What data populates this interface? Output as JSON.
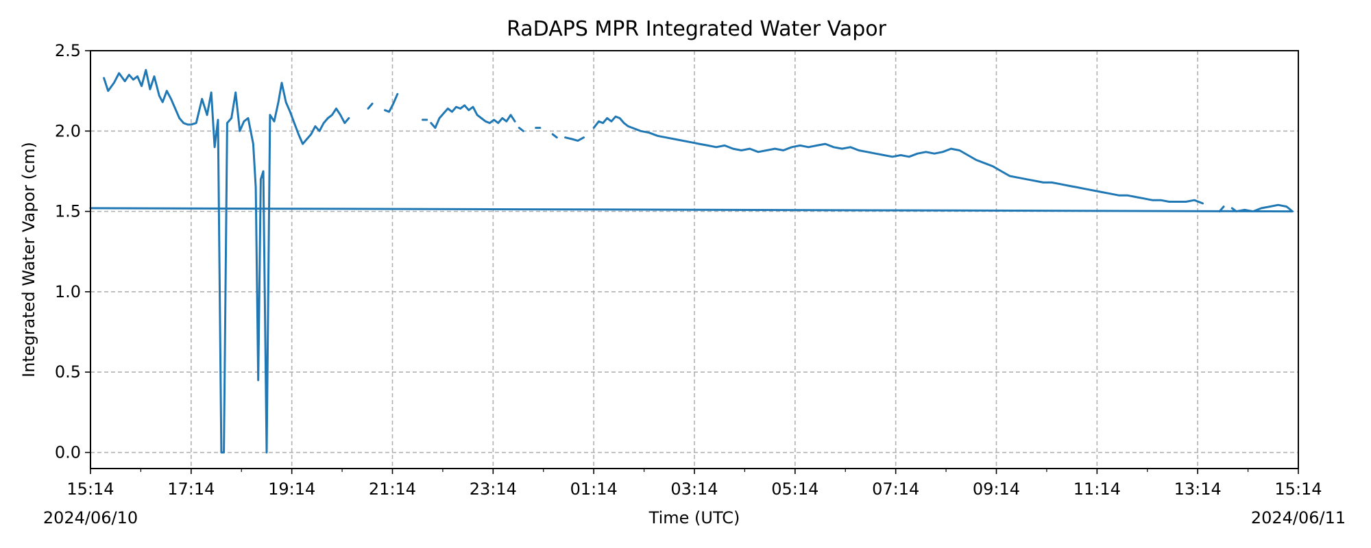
{
  "chart_data": {
    "type": "line",
    "title": "RaDAPS MPR Integrated Water Vapor",
    "xlabel": "Time (UTC)",
    "ylabel": "Integrated Water Vapor (cm)",
    "ylim": [
      -0.1,
      2.5
    ],
    "xlim": [
      "2024-06-10 15:14",
      "2024-06-11 15:14"
    ],
    "x_ticks": [
      "15:14",
      "17:14",
      "19:14",
      "21:14",
      "23:14",
      "01:14",
      "03:14",
      "05:14",
      "07:14",
      "09:14",
      "11:14",
      "13:14",
      "15:14"
    ],
    "y_ticks": [
      "0.0",
      "0.5",
      "1.0",
      "1.5",
      "2.0",
      "2.5"
    ],
    "start_date_label": "2024/06/10",
    "end_date_label": "2024/06/11",
    "grid": true,
    "line_color": "#1f77b4",
    "series": [
      {
        "segments": [
          [
            [
              "15:30",
              2.33
            ],
            [
              "15:35",
              2.25
            ],
            [
              "15:42",
              2.3
            ],
            [
              "15:48",
              2.36
            ],
            [
              "15:55",
              2.31
            ],
            [
              "16:00",
              2.35
            ],
            [
              "16:05",
              2.32
            ],
            [
              "16:10",
              2.34
            ],
            [
              "16:15",
              2.28
            ],
            [
              "16:20",
              2.38
            ],
            [
              "16:25",
              2.26
            ],
            [
              "16:30",
              2.34
            ],
            [
              "16:36",
              2.22
            ],
            [
              "16:40",
              2.18
            ],
            [
              "16:45",
              2.25
            ],
            [
              "16:50",
              2.2
            ],
            [
              "16:55",
              2.14
            ],
            [
              "17:00",
              2.08
            ],
            [
              "17:05",
              2.05
            ],
            [
              "17:10",
              2.04
            ],
            [
              "17:14",
              2.04
            ],
            [
              "17:20",
              2.05
            ],
            [
              "17:27",
              2.2
            ],
            [
              "17:33",
              2.1
            ],
            [
              "17:38",
              2.24
            ],
            [
              "17:42",
              1.9
            ],
            [
              "17:46",
              2.07
            ],
            [
              "17:50",
              0.0
            ],
            [
              "17:53",
              0.0
            ],
            [
              "17:57",
              2.05
            ],
            [
              "18:02",
              2.08
            ],
            [
              "18:07",
              2.24
            ],
            [
              "18:12",
              2.0
            ],
            [
              "18:17",
              2.06
            ],
            [
              "18:22",
              2.08
            ],
            [
              "18:25",
              2.0
            ],
            [
              "18:28",
              1.92
            ],
            [
              "18:31",
              1.65
            ],
            [
              "18:34",
              0.45
            ],
            [
              "18:37",
              1.7
            ],
            [
              "18:40",
              1.75
            ],
            [
              "18:44",
              0.0
            ],
            [
              "18:48",
              2.1
            ],
            [
              "18:53",
              2.06
            ],
            [
              "18:58",
              2.18
            ],
            [
              "19:02",
              2.3
            ],
            [
              "19:07",
              2.18
            ],
            [
              "19:12",
              2.12
            ],
            [
              "19:17",
              2.05
            ],
            [
              "19:22",
              1.98
            ],
            [
              "19:27",
              1.92
            ],
            [
              "19:32",
              1.95
            ],
            [
              "19:37",
              1.98
            ],
            [
              "19:42",
              2.03
            ],
            [
              "19:47",
              2.0
            ],
            [
              "19:52",
              2.05
            ],
            [
              "19:57",
              2.08
            ],
            [
              "20:02",
              2.1
            ],
            [
              "20:07",
              2.14
            ],
            [
              "20:12",
              2.1
            ],
            [
              "20:17",
              2.05
            ],
            [
              "20:22",
              2.08
            ]
          ],
          [
            [
              "20:45",
              2.14
            ],
            [
              "20:50",
              2.17
            ]
          ],
          [
            [
              "21:05",
              2.13
            ],
            [
              "21:10",
              2.12
            ],
            [
              "21:15",
              2.17
            ],
            [
              "21:20",
              2.23
            ]
          ],
          [
            [
              "21:50",
              2.07
            ],
            [
              "21:55",
              2.07
            ]
          ],
          [
            [
              "22:00",
              2.05
            ],
            [
              "22:05",
              2.02
            ],
            [
              "22:10",
              2.08
            ],
            [
              "22:15",
              2.11
            ],
            [
              "22:20",
              2.14
            ],
            [
              "22:25",
              2.12
            ],
            [
              "22:30",
              2.15
            ],
            [
              "22:35",
              2.14
            ],
            [
              "22:40",
              2.16
            ],
            [
              "22:45",
              2.13
            ],
            [
              "22:50",
              2.15
            ],
            [
              "22:55",
              2.1
            ],
            [
              "23:00",
              2.08
            ],
            [
              "23:05",
              2.06
            ],
            [
              "23:10",
              2.05
            ],
            [
              "23:15",
              2.07
            ],
            [
              "23:20",
              2.05
            ],
            [
              "23:25",
              2.08
            ],
            [
              "23:30",
              2.06
            ],
            [
              "23:35",
              2.1
            ],
            [
              "23:40",
              2.06
            ]
          ],
          [
            [
              "23:45",
              2.02
            ],
            [
              "23:50",
              2.0
            ]
          ],
          [
            [
              "00:05",
              2.02
            ],
            [
              "00:10",
              2.02
            ]
          ],
          [
            [
              "00:25",
              1.98
            ],
            [
              "00:30",
              1.96
            ]
          ],
          [
            [
              "00:40",
              1.96
            ],
            [
              "00:48",
              1.95
            ],
            [
              "00:55",
              1.94
            ],
            [
              "01:02",
              1.96
            ]
          ],
          [
            [
              "01:14",
              2.02
            ],
            [
              "01:20",
              2.06
            ],
            [
              "01:25",
              2.05
            ],
            [
              "01:30",
              2.08
            ],
            [
              "01:35",
              2.06
            ],
            [
              "01:40",
              2.09
            ],
            [
              "01:45",
              2.08
            ],
            [
              "01:50",
              2.05
            ],
            [
              "01:55",
              2.03
            ],
            [
              "02:00",
              2.02
            ],
            [
              "02:10",
              2.0
            ],
            [
              "02:20",
              1.99
            ],
            [
              "02:30",
              1.97
            ],
            [
              "02:40",
              1.96
            ],
            [
              "02:50",
              1.95
            ],
            [
              "03:00",
              1.94
            ],
            [
              "03:10",
              1.93
            ],
            [
              "03:20",
              1.92
            ],
            [
              "03:30",
              1.91
            ],
            [
              "03:40",
              1.9
            ],
            [
              "03:50",
              1.91
            ],
            [
              "04:00",
              1.89
            ],
            [
              "04:10",
              1.88
            ],
            [
              "04:20",
              1.89
            ],
            [
              "04:30",
              1.87
            ],
            [
              "04:40",
              1.88
            ],
            [
              "04:50",
              1.89
            ],
            [
              "05:00",
              1.88
            ],
            [
              "05:10",
              1.9
            ],
            [
              "05:20",
              1.91
            ],
            [
              "05:30",
              1.9
            ],
            [
              "05:40",
              1.91
            ],
            [
              "05:50",
              1.92
            ],
            [
              "06:00",
              1.9
            ],
            [
              "06:10",
              1.89
            ],
            [
              "06:20",
              1.9
            ],
            [
              "06:30",
              1.88
            ],
            [
              "06:40",
              1.87
            ],
            [
              "06:50",
              1.86
            ],
            [
              "07:00",
              1.85
            ],
            [
              "07:10",
              1.84
            ],
            [
              "07:20",
              1.85
            ],
            [
              "07:30",
              1.84
            ],
            [
              "07:40",
              1.86
            ],
            [
              "07:50",
              1.87
            ],
            [
              "08:00",
              1.86
            ],
            [
              "08:10",
              1.87
            ],
            [
              "08:20",
              1.89
            ],
            [
              "08:30",
              1.88
            ],
            [
              "08:40",
              1.85
            ],
            [
              "08:50",
              1.82
            ],
            [
              "09:00",
              1.8
            ],
            [
              "09:10",
              1.78
            ],
            [
              "09:20",
              1.75
            ],
            [
              "09:30",
              1.72
            ],
            [
              "09:40",
              1.71
            ],
            [
              "09:50",
              1.7
            ],
            [
              "10:00",
              1.69
            ],
            [
              "10:10",
              1.68
            ],
            [
              "10:20",
              1.68
            ],
            [
              "10:30",
              1.67
            ],
            [
              "10:40",
              1.66
            ],
            [
              "10:50",
              1.65
            ],
            [
              "11:00",
              1.64
            ],
            [
              "11:10",
              1.63
            ],
            [
              "11:20",
              1.62
            ],
            [
              "11:30",
              1.61
            ],
            [
              "11:40",
              1.6
            ],
            [
              "11:50",
              1.6
            ],
            [
              "12:00",
              1.59
            ],
            [
              "12:10",
              1.58
            ],
            [
              "12:20",
              1.57
            ],
            [
              "12:30",
              1.57
            ],
            [
              "12:40",
              1.56
            ],
            [
              "12:50",
              1.56
            ],
            [
              "13:00",
              1.56
            ],
            [
              "13:10",
              1.57
            ],
            [
              "13:20",
              1.55
            ]
          ],
          [
            [
              "13:40",
              1.5
            ],
            [
              "13:45",
              1.53
            ]
          ],
          [
            [
              "13:55",
              1.52
            ],
            [
              "14:00",
              1.5
            ],
            [
              "14:10",
              1.51
            ],
            [
              "14:20",
              1.5
            ],
            [
              "14:30",
              1.52
            ],
            [
              "14:40",
              1.53
            ],
            [
              "14:50",
              1.54
            ],
            [
              "15:00",
              1.53
            ],
            [
              "15:07",
              1.5
            ],
            [
              "15:14",
              1.52
            ]
          ]
        ]
      }
    ]
  }
}
